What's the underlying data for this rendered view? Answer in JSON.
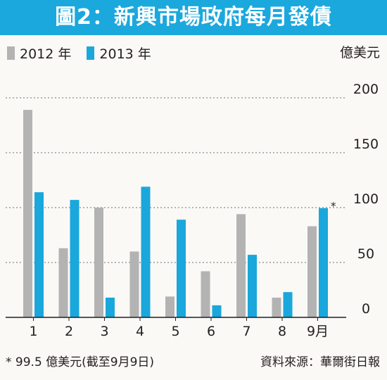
{
  "header": {
    "title": "圖2：新興市場政府每月發債"
  },
  "legend": [
    {
      "label": "2012 年",
      "color": "#b3b3b3"
    },
    {
      "label": "2013 年",
      "color": "#1aa7dc"
    }
  ],
  "unit": "億美元",
  "footnote": "* 99.5 億美元(截至9月9日)",
  "source": "資料來源：華爾街日報",
  "chart_data": {
    "type": "bar",
    "title": "圖2：新興市場政府每月發債",
    "ylabel": "億美元",
    "ylim": [
      0,
      200
    ],
    "yticks": [
      0,
      50,
      100,
      150,
      200
    ],
    "grid": true,
    "legend_position": "top-left",
    "categories": [
      "1",
      "2",
      "3",
      "4",
      "5",
      "6",
      "7",
      "8",
      "9月"
    ],
    "series": [
      {
        "name": "2012 年",
        "color": "#b3b3b3",
        "values": [
          189,
          63,
          100,
          60,
          19,
          42,
          94,
          18,
          83
        ]
      },
      {
        "name": "2013 年",
        "color": "#1aa7dc",
        "values": [
          114,
          107,
          18,
          119,
          89,
          11,
          57,
          23,
          99.5
        ]
      }
    ],
    "annotations": [
      {
        "category": "9月",
        "series": "2013 年",
        "text": "*"
      }
    ]
  }
}
